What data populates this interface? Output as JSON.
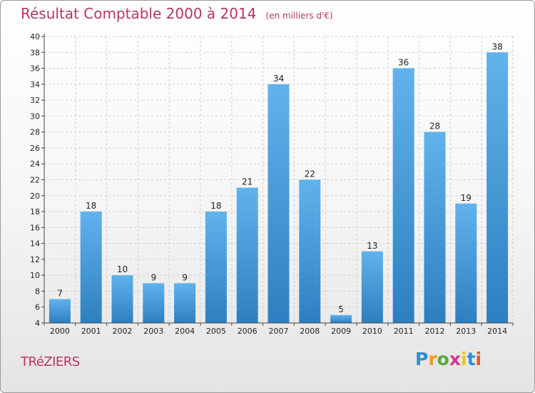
{
  "header": {
    "title": "Résultat Comptable 2000 à 2014",
    "unit": "(en milliers d'€)"
  },
  "footer": {
    "commune": "TRéZIERS",
    "logo_text": "Proxiti",
    "logo_letters": [
      {
        "ch": "P",
        "color": "#2f8fd1"
      },
      {
        "ch": "r",
        "color": "#f29a1e"
      },
      {
        "ch": "o",
        "color": "#5aa83a"
      },
      {
        "ch": "x",
        "color": "#d23a8b"
      },
      {
        "ch": "i",
        "color": "#f2c21e"
      },
      {
        "ch": "t",
        "color": "#2f8fd1"
      },
      {
        "ch": "i",
        "color": "#e4572e"
      }
    ]
  },
  "colors": {
    "bar_light": "#62b2ec",
    "bar_dark": "#2d7fc0",
    "grid": "#cfcfcf",
    "title": "#b5375f"
  },
  "chart_data": {
    "type": "bar",
    "title": "Résultat Comptable 2000 à 2014",
    "subtitle": "(en milliers d'€)",
    "xlabel": "",
    "ylabel": "",
    "categories": [
      "2000",
      "2001",
      "2002",
      "2003",
      "2004",
      "2005",
      "2006",
      "2007",
      "2008",
      "2009",
      "2010",
      "2011",
      "2012",
      "2013",
      "2014"
    ],
    "values": [
      7,
      18,
      10,
      9,
      9,
      18,
      21,
      34,
      22,
      5,
      13,
      36,
      28,
      19,
      38
    ],
    "ylim": [
      4,
      40
    ],
    "yticks": [
      4,
      6,
      8,
      10,
      12,
      14,
      16,
      18,
      20,
      22,
      24,
      26,
      28,
      30,
      32,
      34,
      36,
      38,
      40
    ],
    "grid": true,
    "legend": "none"
  }
}
